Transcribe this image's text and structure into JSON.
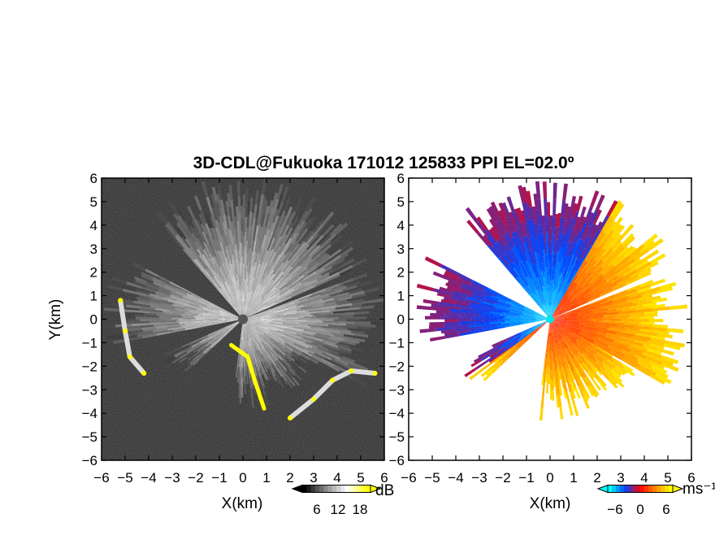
{
  "figure": {
    "title": "3D-CDL@Fukuoka 171012 125833 PPI EL=02.0º"
  },
  "chart_data": [
    {
      "type": "heatmap",
      "title": "",
      "xlabel": "X(km)",
      "ylabel": "Y(km)",
      "xlim": [
        -6,
        6
      ],
      "ylim": [
        -6,
        6
      ],
      "x_ticks": [
        "−6",
        "−5",
        "−4",
        "−3",
        "−2",
        "−1",
        "0",
        "1",
        "2",
        "3",
        "4",
        "5",
        "6"
      ],
      "y_ticks": [
        "6",
        "5",
        "4",
        "3",
        "2",
        "1",
        "0",
        "−1",
        "−2",
        "−3",
        "−4",
        "−5",
        "−6"
      ],
      "quantity": "SNR",
      "colorbar": {
        "unit": "dB",
        "ticks": [
          "6",
          "12",
          "18"
        ],
        "range": [
          0,
          24
        ],
        "colors": [
          "#000000",
          "#888888",
          "#ffffff",
          "#ffff00"
        ]
      },
      "blanked_sectors_deg": [
        [
          130,
          152
        ],
        [
          190,
          203
        ],
        [
          223,
          262
        ],
        [
          20,
          23
        ]
      ],
      "features": [
        {
          "name": "hard-target ridge (yellow)",
          "points": [
            [
              -0.5,
              -1.1
            ],
            [
              0.2,
              -1.6
            ],
            [
              0.5,
              -2.6
            ],
            [
              0.9,
              -3.8
            ]
          ]
        },
        {
          "name": "coastal returns west",
          "points": [
            [
              -5.2,
              0.8
            ],
            [
              -5,
              -0.5
            ],
            [
              -4.8,
              -1.6
            ],
            [
              -4.2,
              -2.3
            ]
          ]
        },
        {
          "name": "coastal returns south-east",
          "points": [
            [
              2.0,
              -4.2
            ],
            [
              3.0,
              -3.4
            ],
            [
              3.8,
              -2.6
            ],
            [
              4.6,
              -2.2
            ],
            [
              5.6,
              -2.3
            ]
          ]
        }
      ]
    },
    {
      "type": "heatmap",
      "title": "",
      "xlabel": "X(km)",
      "ylabel": "",
      "xlim": [
        -6,
        6
      ],
      "ylim": [
        -6,
        6
      ],
      "x_ticks": [
        "−6",
        "−5",
        "−4",
        "−3",
        "−2",
        "−1",
        "0",
        "1",
        "2",
        "3",
        "4",
        "5",
        "6"
      ],
      "y_ticks": [
        "6",
        "5",
        "4",
        "3",
        "2",
        "1",
        "0",
        "−1",
        "−2",
        "−3",
        "−4",
        "−5",
        "−6"
      ],
      "quantity": "radial velocity",
      "colorbar": {
        "unit": "ms⁻¹",
        "ticks": [
          "−6",
          "0",
          "6"
        ],
        "range": [
          -8,
          8
        ],
        "colors": [
          "#00ffff",
          "#0044ff",
          "#ff0000",
          "#ff8800",
          "#ffff00"
        ]
      },
      "velocity_field": {
        "negative_sector_deg": [
          60,
          215
        ],
        "positive_sector_deg": [
          220,
          400
        ],
        "max_speed_ms": 7
      }
    }
  ]
}
